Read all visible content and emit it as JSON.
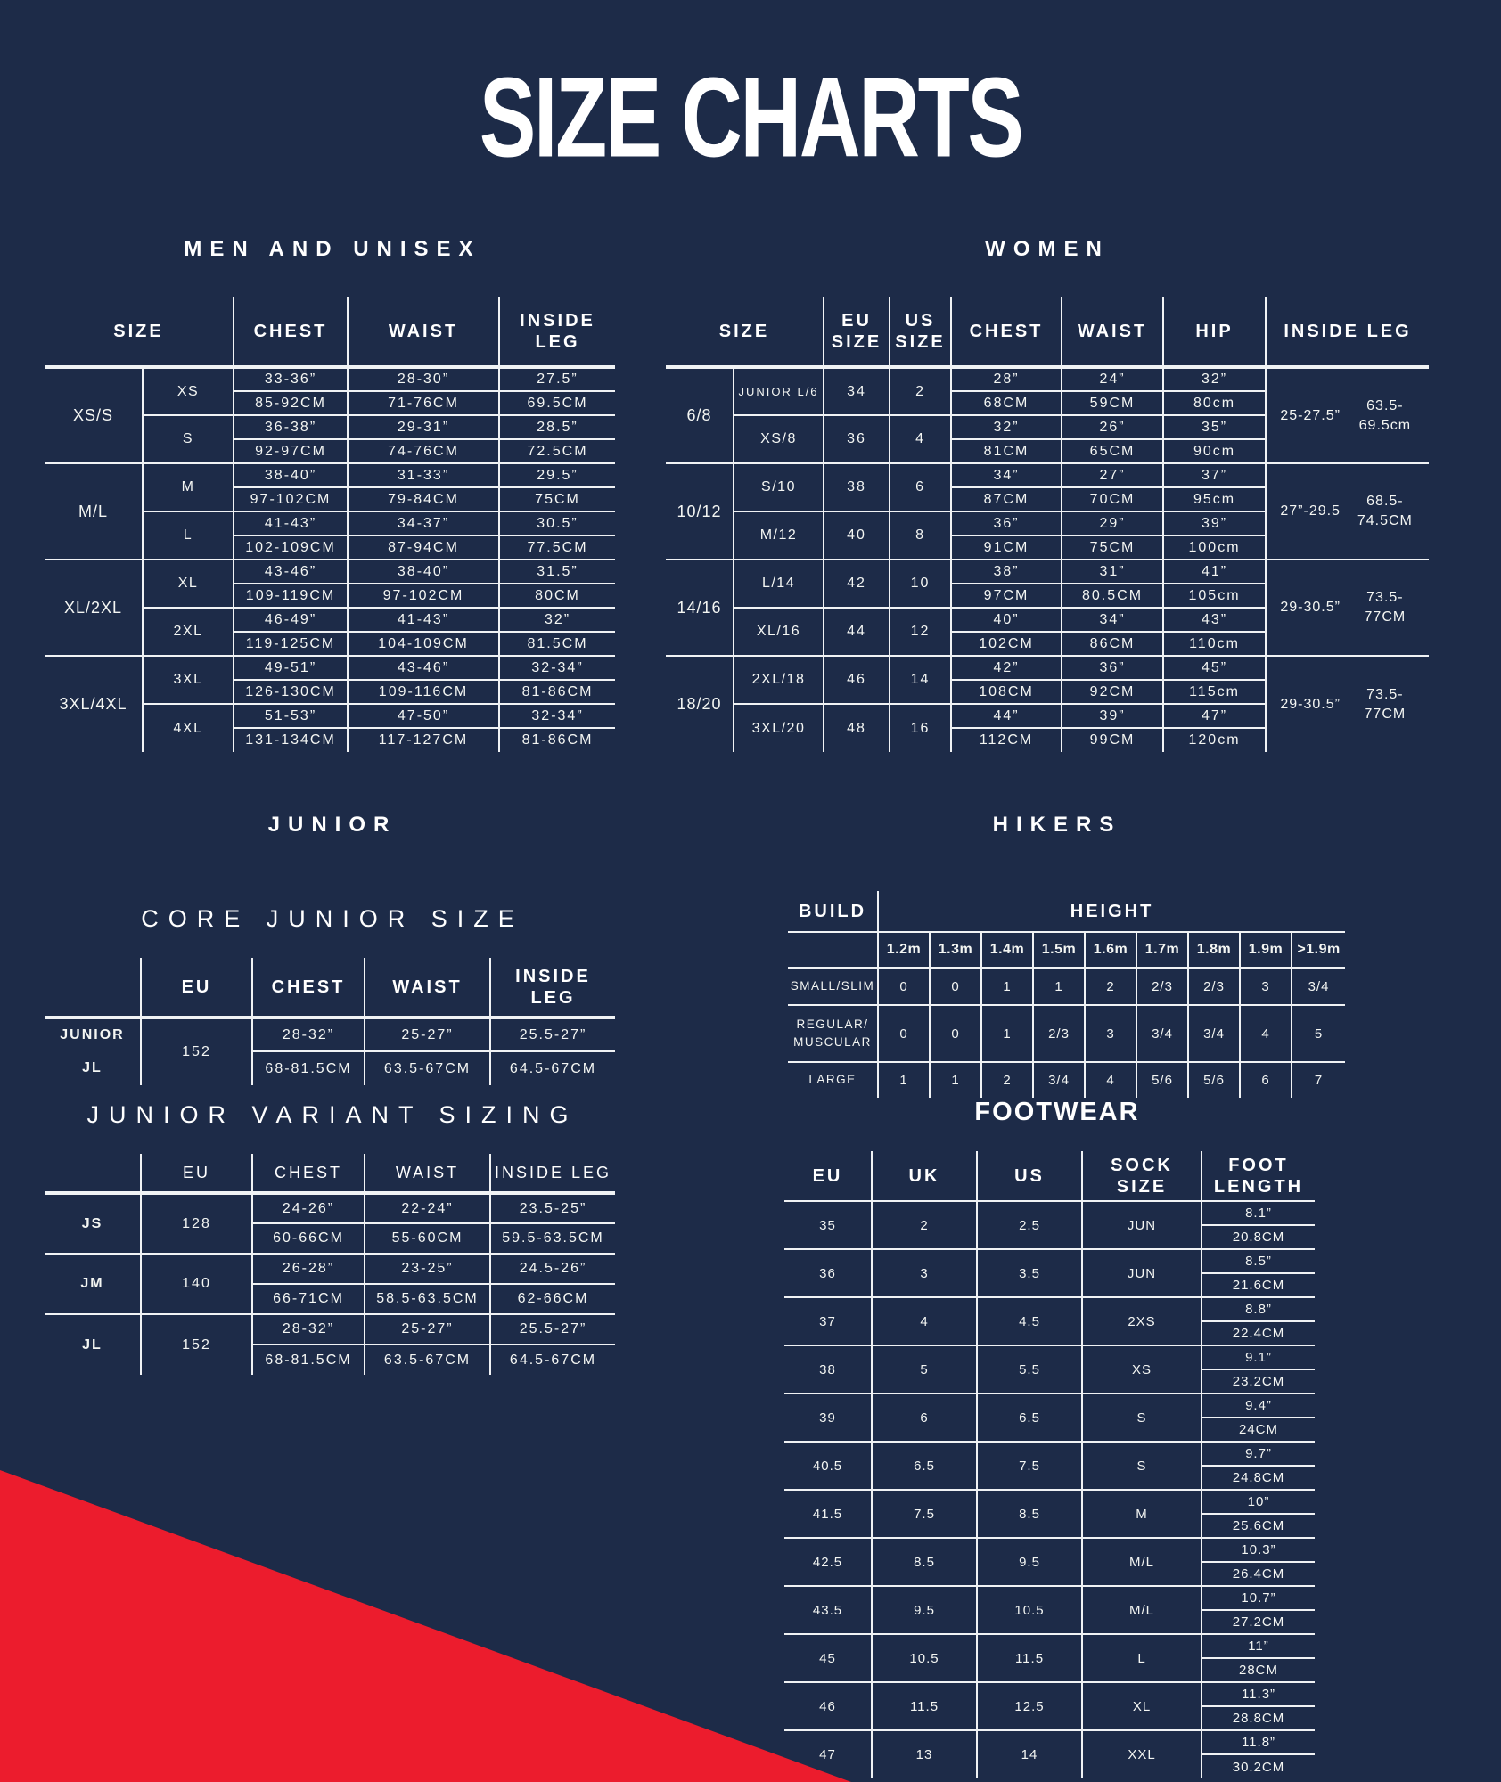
{
  "title": "SIZE CHARTS",
  "colors": {
    "background": "#1d2b48",
    "accent_red": "#ec1c2d",
    "line": "#f0f2f4",
    "text": "#f4f6f3"
  },
  "sections": {
    "men": "MEN AND UNISEX",
    "women": "WOMEN",
    "junior": "JUNIOR",
    "core_junior": "CORE JUNIOR SIZE",
    "hikers": "HIKERS",
    "junior_variant": "JUNIOR VARIANT SIZING",
    "footwear": "FOOTWEAR"
  },
  "men": {
    "headers": [
      "SIZE",
      "CHEST",
      "WAIST",
      "INSIDE LEG"
    ],
    "groups": [
      {
        "label": "XS/S",
        "sizes": [
          {
            "label": "XS",
            "chest": [
              "33-36”",
              "85-92CM"
            ],
            "waist": [
              "28-30”",
              "71-76CM"
            ],
            "leg": [
              "27.5”",
              "69.5CM"
            ]
          },
          {
            "label": "S",
            "chest": [
              "36-38”",
              "92-97CM"
            ],
            "waist": [
              "29-31”",
              "74-76CM"
            ],
            "leg": [
              "28.5”",
              "72.5CM"
            ]
          }
        ]
      },
      {
        "label": "M/L",
        "sizes": [
          {
            "label": "M",
            "chest": [
              "38-40”",
              "97-102CM"
            ],
            "waist": [
              "31-33”",
              "79-84CM"
            ],
            "leg": [
              "29.5”",
              "75CM"
            ]
          },
          {
            "label": "L",
            "chest": [
              "41-43”",
              "102-109CM"
            ],
            "waist": [
              "34-37”",
              "87-94CM"
            ],
            "leg": [
              "30.5”",
              "77.5CM"
            ]
          }
        ]
      },
      {
        "label": "XL/2XL",
        "sizes": [
          {
            "label": "XL",
            "chest": [
              "43-46”",
              "109-119CM"
            ],
            "waist": [
              "38-40”",
              "97-102CM"
            ],
            "leg": [
              "31.5”",
              "80CM"
            ]
          },
          {
            "label": "2XL",
            "chest": [
              "46-49”",
              "119-125CM"
            ],
            "waist": [
              "41-43”",
              "104-109CM"
            ],
            "leg": [
              "32”",
              "81.5CM"
            ]
          }
        ]
      },
      {
        "label": "3XL/4XL",
        "sizes": [
          {
            "label": "3XL",
            "chest": [
              "49-51”",
              "126-130CM"
            ],
            "waist": [
              "43-46”",
              "109-116CM"
            ],
            "leg": [
              "32-34”",
              "81-86CM"
            ]
          },
          {
            "label": "4XL",
            "chest": [
              "51-53”",
              "131-134CM"
            ],
            "waist": [
              "47-50”",
              "117-127CM"
            ],
            "leg": [
              "32-34”",
              "81-86CM"
            ]
          }
        ]
      }
    ]
  },
  "women": {
    "headers": [
      "SIZE",
      "EU SIZE",
      "US SIZE",
      "CHEST",
      "WAIST",
      "HIP",
      "INSIDE LEG"
    ],
    "groups": [
      {
        "label": "6/8",
        "leg": [
          "25-27.5”",
          "63.5-69.5cm"
        ],
        "sizes": [
          {
            "label": "JUNIOR L/6",
            "eu": "34",
            "us": "2",
            "chest": [
              "28”",
              "68CM"
            ],
            "waist": [
              "24”",
              "59CM"
            ],
            "hip": [
              "32”",
              "80cm"
            ]
          },
          {
            "label": "XS/8",
            "eu": "36",
            "us": "4",
            "chest": [
              "32”",
              "81CM"
            ],
            "waist": [
              "26”",
              "65CM"
            ],
            "hip": [
              "35”",
              "90cm"
            ]
          }
        ]
      },
      {
        "label": "10/12",
        "leg": [
          "27”-29.5",
          "68.5-74.5CM"
        ],
        "sizes": [
          {
            "label": "S/10",
            "eu": "38",
            "us": "6",
            "chest": [
              "34”",
              "87CM"
            ],
            "waist": [
              "27”",
              "70CM"
            ],
            "hip": [
              "37”",
              "95cm"
            ]
          },
          {
            "label": "M/12",
            "eu": "40",
            "us": "8",
            "chest": [
              "36”",
              "91CM"
            ],
            "waist": [
              "29”",
              "75CM"
            ],
            "hip": [
              "39”",
              "100cm"
            ]
          }
        ]
      },
      {
        "label": "14/16",
        "leg": [
          "29-30.5”",
          "73.5-77CM"
        ],
        "sizes": [
          {
            "label": "L/14",
            "eu": "42",
            "us": "10",
            "chest": [
              "38”",
              "97CM"
            ],
            "waist": [
              "31”",
              "80.5CM"
            ],
            "hip": [
              "41”",
              "105cm"
            ]
          },
          {
            "label": "XL/16",
            "eu": "44",
            "us": "12",
            "chest": [
              "40”",
              "102CM"
            ],
            "waist": [
              "34”",
              "86CM"
            ],
            "hip": [
              "43”",
              "110cm"
            ]
          }
        ]
      },
      {
        "label": "18/20",
        "leg": [
          "29-30.5”",
          "73.5-77CM"
        ],
        "sizes": [
          {
            "label": "2XL/18",
            "eu": "46",
            "us": "14",
            "chest": [
              "42”",
              "108CM"
            ],
            "waist": [
              "36”",
              "92CM"
            ],
            "hip": [
              "45”",
              "115cm"
            ]
          },
          {
            "label": "3XL/20",
            "eu": "48",
            "us": "16",
            "chest": [
              "44”",
              "112CM"
            ],
            "waist": [
              "39”",
              "99CM"
            ],
            "hip": [
              "47”",
              "120cm"
            ]
          }
        ]
      }
    ]
  },
  "core_junior": {
    "headers": [
      "",
      "EU",
      "CHEST",
      "WAIST",
      "INSIDE LEG"
    ],
    "row_labels": [
      "JUNIOR",
      "JL"
    ],
    "eu": "152",
    "chest": [
      "28-32”",
      "68-81.5CM"
    ],
    "waist": [
      "25-27”",
      "63.5-67CM"
    ],
    "leg": [
      "25.5-27”",
      "64.5-67CM"
    ]
  },
  "junior_variant": {
    "headers": [
      "",
      "EU",
      "CHEST",
      "WAIST",
      "INSIDE LEG"
    ],
    "groups": [
      {
        "label": "JS",
        "eu": "128",
        "chest": [
          "24-26”",
          "60-66CM"
        ],
        "waist": [
          "22-24”",
          "55-60CM"
        ],
        "leg": [
          "23.5-25”",
          "59.5-63.5CM"
        ]
      },
      {
        "label": "JM",
        "eu": "140",
        "chest": [
          "26-28”",
          "66-71CM"
        ],
        "waist": [
          "23-25”",
          "58.5-63.5CM"
        ],
        "leg": [
          "24.5-26”",
          "62-66CM"
        ]
      },
      {
        "label": "JL",
        "eu": "152",
        "chest": [
          "28-32”",
          "68-81.5CM"
        ],
        "waist": [
          "25-27”",
          "63.5-67CM"
        ],
        "leg": [
          "25.5-27”",
          "64.5-67CM"
        ]
      }
    ]
  },
  "hikers": {
    "build_header": "BUILD",
    "height_header": "HEIGHT",
    "heights": [
      "1.2m",
      "1.3m",
      "1.4m",
      "1.5m",
      "1.6m",
      "1.7m",
      "1.8m",
      "1.9m",
      ">1.9m"
    ],
    "rows": [
      {
        "build": "SMALL/SLIM",
        "values": [
          "0",
          "0",
          "1",
          "1",
          "2",
          "2/3",
          "2/3",
          "3",
          "3/4"
        ]
      },
      {
        "build": "REGULAR/ MUSCULAR",
        "values": [
          "0",
          "0",
          "1",
          "2/3",
          "3",
          "3/4",
          "3/4",
          "4",
          "5"
        ]
      },
      {
        "build": "LARGE",
        "values": [
          "1",
          "1",
          "2",
          "3/4",
          "4",
          "5/6",
          "5/6",
          "6",
          "7"
        ]
      }
    ]
  },
  "footwear": {
    "headers": [
      "EU",
      "UK",
      "US",
      "SOCK SIZE",
      "FOOT LENGTH"
    ],
    "rows": [
      {
        "eu": "35",
        "uk": "2",
        "us": "2.5",
        "sock": "JUN",
        "length": [
          "8.1”",
          "20.8CM"
        ]
      },
      {
        "eu": "36",
        "uk": "3",
        "us": "3.5",
        "sock": "JUN",
        "length": [
          "8.5”",
          "21.6CM"
        ]
      },
      {
        "eu": "37",
        "uk": "4",
        "us": "4.5",
        "sock": "2XS",
        "length": [
          "8.8”",
          "22.4CM"
        ]
      },
      {
        "eu": "38",
        "uk": "5",
        "us": "5.5",
        "sock": "XS",
        "length": [
          "9.1”",
          "23.2CM"
        ]
      },
      {
        "eu": "39",
        "uk": "6",
        "us": "6.5",
        "sock": "S",
        "length": [
          "9.4”",
          "24CM"
        ]
      },
      {
        "eu": "40.5",
        "uk": "6.5",
        "us": "7.5",
        "sock": "S",
        "length": [
          "9.7”",
          "24.8CM"
        ]
      },
      {
        "eu": "41.5",
        "uk": "7.5",
        "us": "8.5",
        "sock": "M",
        "length": [
          "10”",
          "25.6CM"
        ]
      },
      {
        "eu": "42.5",
        "uk": "8.5",
        "us": "9.5",
        "sock": "M/L",
        "length": [
          "10.3”",
          "26.4CM"
        ]
      },
      {
        "eu": "43.5",
        "uk": "9.5",
        "us": "10.5",
        "sock": "M/L",
        "length": [
          "10.7”",
          "27.2CM"
        ]
      },
      {
        "eu": "45",
        "uk": "10.5",
        "us": "11.5",
        "sock": "L",
        "length": [
          "11”",
          "28CM"
        ]
      },
      {
        "eu": "46",
        "uk": "11.5",
        "us": "12.5",
        "sock": "XL",
        "length": [
          "11.3”",
          "28.8CM"
        ]
      },
      {
        "eu": "47",
        "uk": "13",
        "us": "14",
        "sock": "XXL",
        "length": [
          "11.8”",
          "30.2CM"
        ]
      }
    ]
  }
}
